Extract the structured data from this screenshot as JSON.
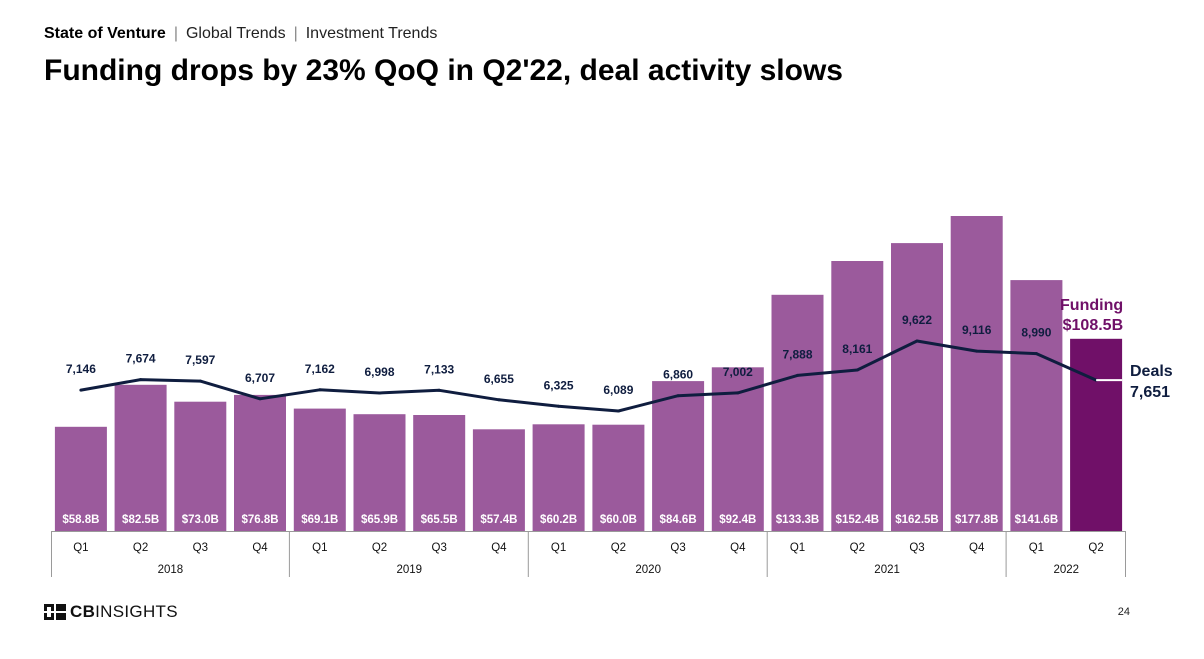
{
  "header": {
    "crumb_1": "State of Venture",
    "crumb_2": "Global Trends",
    "crumb_3": "Investment Trends",
    "separator": "|",
    "title": "Funding drops by 23% QoQ in Q2'22, deal activity slows"
  },
  "footer": {
    "logo_bold": "CB",
    "logo_rest": "INSIGHTS",
    "page_number": "24"
  },
  "chart_data": {
    "type": "bar",
    "categories": [
      "Q1",
      "Q2",
      "Q3",
      "Q4",
      "Q1",
      "Q2",
      "Q3",
      "Q4",
      "Q1",
      "Q2",
      "Q3",
      "Q4",
      "Q1",
      "Q2",
      "Q3",
      "Q4",
      "Q1",
      "Q2"
    ],
    "years": [
      {
        "label": "2018",
        "count": 4
      },
      {
        "label": "2019",
        "count": 4
      },
      {
        "label": "2020",
        "count": 4
      },
      {
        "label": "2021",
        "count": 4
      },
      {
        "label": "2022",
        "count": 2
      }
    ],
    "series": [
      {
        "name": "Funding",
        "kind": "bar",
        "values": [
          58.8,
          82.5,
          73.0,
          76.8,
          69.1,
          65.9,
          65.5,
          57.4,
          60.2,
          60.0,
          84.6,
          92.4,
          133.3,
          152.4,
          162.5,
          177.8,
          141.6,
          108.5
        ],
        "labels": [
          "$58.8B",
          "$82.5B",
          "$73.0B",
          "$76.8B",
          "$69.1B",
          "$65.9B",
          "$65.5B",
          "$57.4B",
          "$60.2B",
          "$60.0B",
          "$84.6B",
          "$92.4B",
          "$133.3B",
          "$152.4B",
          "$162.5B",
          "$177.8B",
          "$141.6B",
          ""
        ]
      },
      {
        "name": "Deals",
        "kind": "line",
        "values": [
          7146,
          7674,
          7597,
          6707,
          7162,
          6998,
          7133,
          6655,
          6325,
          6089,
          6860,
          7002,
          7888,
          8161,
          9622,
          9116,
          8990,
          7651
        ],
        "labels": [
          "7,146",
          "7,674",
          "7,597",
          "6,707",
          "7,162",
          "6,998",
          "7,133",
          "6,655",
          "6,325",
          "6,089",
          "6,860",
          "7,002",
          "7,888",
          "8,161",
          "9,622",
          "9,116",
          "8,990",
          ""
        ]
      }
    ],
    "callouts": {
      "funding_name": "Funding",
      "funding_value": "$108.5B",
      "deals_name": "Deals",
      "deals_value": "7,651"
    },
    "colors": {
      "bar": "#9b5a9c",
      "bar_highlight": "#701068",
      "line": "#0f1d3f",
      "funding_callout": "#701068",
      "deals_callout": "#0f1d3f",
      "axis": "#9a9a9a"
    }
  }
}
